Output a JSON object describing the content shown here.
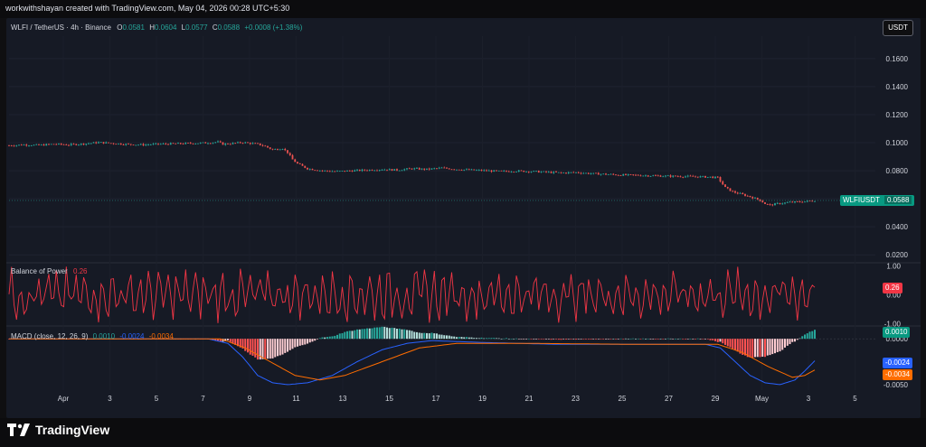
{
  "header": {
    "credit": "workwithshayan created with TradingView.com, May 04, 2026 00:28 UTC+5:30"
  },
  "symbol": {
    "title": "WLFI / TetherUS · 4h · Binance",
    "o_label": "O",
    "o_value": "0.0581",
    "h_label": "H",
    "h_value": "0.0604",
    "l_label": "L",
    "l_value": "0.0577",
    "c_label": "C",
    "c_value": "0.0588",
    "change": "+0.0008 (+1.38%)",
    "last_label": "WLFIUSDT",
    "last_value": "0.0588"
  },
  "unit": "USDT",
  "colors": {
    "up": "#26a69a",
    "down": "#ef5350",
    "bop": "#f23645",
    "macd": "#2962ff",
    "signal": "#ff6d00",
    "background": "#161a25"
  },
  "bop": {
    "title": "Balance of Power",
    "value": "0.26",
    "ticks": [
      "1.00",
      "0.00",
      "-1.00"
    ]
  },
  "macd": {
    "title": "MACD (close, 12, 26, 9)",
    "hist_value": "0.0010",
    "macd_value": "-0.0024",
    "signal_value": "-0.0034",
    "ticks": [
      "0.0000",
      "-0.0050"
    ]
  },
  "footer": {
    "logo_text": "TradingView"
  },
  "chart_data": [
    {
      "type": "candlestick",
      "title": "WLFI / TetherUS · 4h · Binance",
      "y_axis": {
        "ticks": [
          "0.1600",
          "0.1400",
          "0.1200",
          "0.1000",
          "0.0800",
          "0.0600",
          "0.0400",
          "0.0200"
        ],
        "range": [
          0.015,
          0.176
        ]
      },
      "x_axis": {
        "ticks": [
          "Apr",
          "3",
          "5",
          "7",
          "9",
          "11",
          "13",
          "15",
          "17",
          "19",
          "21",
          "23",
          "25",
          "27",
          "29",
          "May",
          "3",
          "5"
        ]
      },
      "close_path": [
        [
          0,
          0.098
        ],
        [
          6,
          0.0985
        ],
        [
          12,
          0.0982
        ],
        [
          18,
          0.099
        ],
        [
          24,
          0.0985
        ],
        [
          30,
          0.0992
        ],
        [
          36,
          0.1002
        ],
        [
          42,
          0.0995
        ],
        [
          48,
          0.0988
        ],
        [
          54,
          0.0985
        ],
        [
          60,
          0.099
        ],
        [
          66,
          0.0992
        ],
        [
          72,
          0.0995
        ],
        [
          78,
          0.0998
        ],
        [
          84,
          0.1005
        ],
        [
          86,
          0.099
        ],
        [
          90,
          0.0995
        ],
        [
          94,
          0.1002
        ],
        [
          100,
          0.099
        ],
        [
          103,
          0.0975
        ],
        [
          106,
          0.095
        ],
        [
          110,
          0.096
        ],
        [
          112,
          0.093
        ],
        [
          114,
          0.088
        ],
        [
          116,
          0.085
        ],
        [
          120,
          0.0815
        ],
        [
          126,
          0.08
        ],
        [
          132,
          0.0795
        ],
        [
          138,
          0.08
        ],
        [
          144,
          0.0805
        ],
        [
          150,
          0.081
        ],
        [
          156,
          0.0805
        ],
        [
          162,
          0.0815
        ],
        [
          168,
          0.081
        ],
        [
          174,
          0.082
        ],
        [
          180,
          0.081
        ],
        [
          186,
          0.0805
        ],
        [
          192,
          0.08
        ],
        [
          198,
          0.0795
        ],
        [
          204,
          0.0798
        ],
        [
          210,
          0.0795
        ],
        [
          216,
          0.079
        ],
        [
          222,
          0.0785
        ],
        [
          228,
          0.0788
        ],
        [
          234,
          0.078
        ],
        [
          240,
          0.0775
        ],
        [
          246,
          0.077
        ],
        [
          252,
          0.0768
        ],
        [
          258,
          0.0765
        ],
        [
          264,
          0.0762
        ],
        [
          270,
          0.076
        ],
        [
          276,
          0.0758
        ],
        [
          282,
          0.0755
        ],
        [
          285,
          0.075
        ],
        [
          288,
          0.068
        ],
        [
          291,
          0.065
        ],
        [
          294,
          0.0635
        ],
        [
          298,
          0.0615
        ],
        [
          302,
          0.059
        ],
        [
          304,
          0.0565
        ],
        [
          306,
          0.0555
        ],
        [
          309,
          0.0565
        ],
        [
          314,
          0.0575
        ],
        [
          320,
          0.058
        ],
        [
          324,
          0.0588
        ]
      ]
    },
    {
      "type": "line",
      "title": "Balance of Power",
      "y_axis": {
        "ticks": [
          "1.00",
          "0.00",
          "-1.00"
        ],
        "range": [
          -1.05,
          1.05
        ]
      },
      "last_value": 0.26
    },
    {
      "type": "bar",
      "title": "MACD (close, 12, 26, 9)",
      "series": [
        {
          "name": "Histogram",
          "last_value": 0.001
        },
        {
          "name": "MACD",
          "last_value": -0.0024
        },
        {
          "name": "Signal",
          "last_value": -0.0034
        }
      ],
      "y_axis": {
        "ticks": [
          "0.0000",
          "-0.0050"
        ],
        "range": [
          -0.0056,
          0.0012
        ]
      },
      "macd_path": [
        [
          0,
          0.0
        ],
        [
          80,
          0.0
        ],
        [
          88,
          -0.0005
        ],
        [
          94,
          -0.002
        ],
        [
          100,
          -0.004
        ],
        [
          106,
          -0.0048
        ],
        [
          112,
          -0.005
        ],
        [
          120,
          -0.0048
        ],
        [
          130,
          -0.004
        ],
        [
          140,
          -0.0025
        ],
        [
          150,
          -0.0012
        ],
        [
          160,
          -0.0005
        ],
        [
          170,
          -0.0002
        ],
        [
          190,
          -0.0004
        ],
        [
          220,
          -0.0006
        ],
        [
          250,
          -0.0006
        ],
        [
          280,
          -0.0006
        ],
        [
          286,
          -0.001
        ],
        [
          292,
          -0.0025
        ],
        [
          298,
          -0.004
        ],
        [
          304,
          -0.0048
        ],
        [
          310,
          -0.005
        ],
        [
          316,
          -0.0045
        ],
        [
          320,
          -0.0035
        ],
        [
          324,
          -0.0024
        ]
      ],
      "signal_path": [
        [
          0,
          0.0
        ],
        [
          85,
          0.0
        ],
        [
          95,
          -0.001
        ],
        [
          105,
          -0.0025
        ],
        [
          115,
          -0.004
        ],
        [
          125,
          -0.0045
        ],
        [
          135,
          -0.004
        ],
        [
          145,
          -0.003
        ],
        [
          155,
          -0.002
        ],
        [
          165,
          -0.001
        ],
        [
          180,
          -0.0005
        ],
        [
          210,
          -0.0005
        ],
        [
          250,
          -0.0006
        ],
        [
          285,
          -0.0006
        ],
        [
          295,
          -0.0015
        ],
        [
          305,
          -0.003
        ],
        [
          315,
          -0.0042
        ],
        [
          320,
          -0.004
        ],
        [
          324,
          -0.0034
        ]
      ]
    }
  ]
}
